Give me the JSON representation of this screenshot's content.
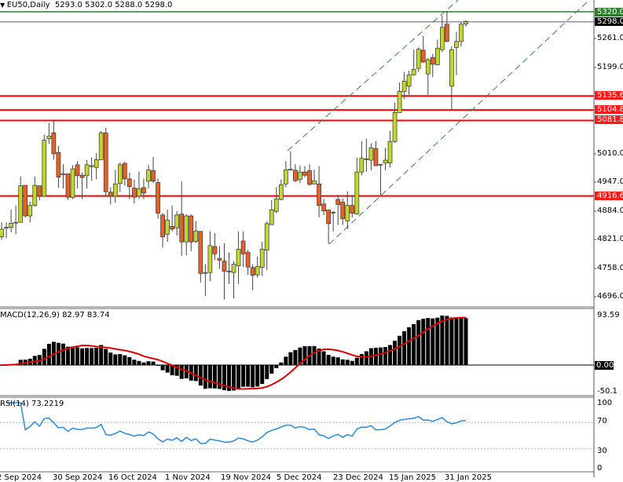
{
  "header": {
    "arrow_icon": "triangle-down-icon",
    "symbol": "EU50,Daily",
    "ohlc": "5293.0 5302.0 5288.0 5298.0"
  },
  "chart_data": [
    {
      "type": "candlestick",
      "title": "EU50,Daily",
      "ylim": [
        4680,
        5330
      ],
      "y_ticks": [
        "5261.0",
        "5199.0",
        "5010.0",
        "4947.0",
        "4884.0",
        "4821.0",
        "4758.0",
        "4696.0"
      ],
      "x_ticks": [
        "2 Sep 2024",
        "30 Sep 2024",
        "16 Oct 2024",
        "1 Nov 2024",
        "19 Nov 2024",
        "5 Dec 2024",
        "23 Dec 2024",
        "15 Jan 2025",
        "31 Jan 2025"
      ],
      "horizontal_levels": [
        {
          "label": "5320.0",
          "value": 5320.0,
          "color": "#2e7d2e"
        },
        {
          "label": "5298.0",
          "value": 5298.0,
          "color": "#8c8cc8",
          "tag_color": "#000000"
        },
        {
          "label": "5135.6",
          "value": 5135.6,
          "color": "#ff0000"
        },
        {
          "label": "5104.8",
          "value": 5104.8,
          "color": "#ff0000"
        },
        {
          "label": "5081.8",
          "value": 5081.8,
          "color": "#ff0000"
        },
        {
          "label": "4916.6",
          "value": 4916.6,
          "color": "#ff0000"
        }
      ],
      "bull_color": "#c2d62e",
      "bear_color": "#e2622a",
      "ohlc": [
        [
          4827,
          4859,
          4821,
          4844
        ],
        [
          4848,
          4859,
          4824,
          4848
        ],
        [
          4848,
          4887,
          4837,
          4857
        ],
        [
          4858,
          4896,
          4833,
          4859
        ],
        [
          4859,
          4959,
          4858,
          4939
        ],
        [
          4940,
          4940,
          4869,
          4873
        ],
        [
          4873,
          4904,
          4859,
          4896
        ],
        [
          4896,
          4959,
          4893,
          4940
        ],
        [
          4939,
          4939,
          4907,
          4916
        ],
        [
          4916,
          5051,
          4916,
          5039
        ],
        [
          5042,
          5076,
          5031,
          5048
        ],
        [
          5055,
          5082,
          4996,
          5009
        ],
        [
          5012,
          5026,
          4935,
          4958
        ],
        [
          4964,
          4986,
          4933,
          4965
        ],
        [
          4965,
          4965,
          4908,
          4914
        ],
        [
          4913,
          4984,
          4910,
          4976
        ],
        [
          4985,
          4993,
          4933,
          4961
        ],
        [
          4962,
          4968,
          4910,
          4957
        ],
        [
          4961,
          4995,
          4933,
          4985
        ],
        [
          4981,
          5001,
          4950,
          4983
        ],
        [
          4979,
          5010,
          4953,
          4996
        ],
        [
          4996,
          5059,
          4996,
          5055
        ],
        [
          5055,
          5066,
          4916,
          4926
        ],
        [
          4925,
          4936,
          4898,
          4916
        ],
        [
          4916,
          4974,
          4902,
          4943
        ],
        [
          4944,
          4990,
          4925,
          4985
        ],
        [
          4988,
          4992,
          4939,
          4954
        ],
        [
          4954,
          4968,
          4910,
          4937
        ],
        [
          4934,
          4952,
          4900,
          4914
        ],
        [
          4916,
          4970,
          4910,
          4933
        ],
        [
          4935,
          4955,
          4910,
          4923
        ],
        [
          4949,
          4985,
          4933,
          4974
        ],
        [
          4972,
          5002,
          4945,
          4949
        ],
        [
          4946,
          4955,
          4867,
          4879
        ],
        [
          4875,
          4879,
          4804,
          4827
        ],
        [
          4833,
          4887,
          4816,
          4864
        ],
        [
          4850,
          4896,
          4839,
          4844
        ],
        [
          4847,
          4884,
          4830,
          4875
        ],
        [
          4877,
          4949,
          4786,
          4816
        ],
        [
          4816,
          4877,
          4787,
          4873
        ],
        [
          4873,
          4876,
          4796,
          4816
        ],
        [
          4817,
          4862,
          4813,
          4840
        ],
        [
          4839,
          4839,
          4727,
          4747
        ],
        [
          4749,
          4767,
          4698,
          4749
        ],
        [
          4749,
          4839,
          4730,
          4808
        ],
        [
          4806,
          4835,
          4777,
          4790
        ],
        [
          4780,
          4807,
          4757,
          4776
        ],
        [
          4774,
          4813,
          4690,
          4752
        ],
        [
          4752,
          4793,
          4724,
          4752
        ],
        [
          4749,
          4774,
          4692,
          4767
        ],
        [
          4764,
          4839,
          4724,
          4800
        ],
        [
          4818,
          4839,
          4761,
          4790
        ],
        [
          4793,
          4799,
          4744,
          4761
        ],
        [
          4760,
          4767,
          4710,
          4743
        ],
        [
          4744,
          4784,
          4738,
          4762
        ],
        [
          4760,
          4816,
          4741,
          4800
        ],
        [
          4798,
          4861,
          4754,
          4856
        ],
        [
          4854,
          4907,
          4853,
          4886
        ],
        [
          4883,
          4936,
          4879,
          4910
        ],
        [
          4909,
          4953,
          4907,
          4941
        ],
        [
          4943,
          4993,
          4936,
          4974
        ],
        [
          4974,
          5015,
          4972,
          4975
        ],
        [
          4973,
          4986,
          4947,
          4950
        ],
        [
          4953,
          4983,
          4945,
          4969
        ],
        [
          4969,
          4982,
          4958,
          4962
        ],
        [
          4972,
          4986,
          4939,
          4942
        ],
        [
          4943,
          4974,
          4942,
          4950
        ],
        [
          4943,
          4982,
          4870,
          4896
        ],
        [
          4899,
          4910,
          4875,
          4884
        ],
        [
          4886,
          4886,
          4812,
          4856
        ],
        [
          4880,
          4884,
          4839,
          4881
        ],
        [
          4909,
          4919,
          4853,
          4898
        ],
        [
          4903,
          4911,
          4853,
          4867
        ],
        [
          4862,
          4927,
          4844,
          4896
        ],
        [
          4896,
          4919,
          4869,
          4879
        ],
        [
          4877,
          5001,
          4876,
          4969
        ],
        [
          4969,
          5037,
          4962,
          4999
        ],
        [
          4997,
          5042,
          4970,
          4998
        ],
        [
          4995,
          5032,
          4973,
          5022
        ],
        [
          5020,
          5037,
          4982,
          4983
        ],
        [
          4985,
          4986,
          4919,
          4986
        ],
        [
          4989,
          5022,
          4973,
          4995
        ],
        [
          4989,
          5059,
          4979,
          5036
        ],
        [
          5036,
          5121,
          5033,
          5099
        ],
        [
          5099,
          5165,
          5099,
          5146
        ],
        [
          5145,
          5188,
          5129,
          5168
        ],
        [
          5157,
          5191,
          5138,
          5182
        ],
        [
          5182,
          5237,
          5180,
          5194
        ],
        [
          5196,
          5242,
          5188,
          5238
        ],
        [
          5236,
          5267,
          5208,
          5210
        ],
        [
          5184,
          5219,
          5138,
          5215
        ],
        [
          5220,
          5228,
          5177,
          5205
        ],
        [
          5204,
          5259,
          5203,
          5240
        ],
        [
          5237,
          5311,
          5232,
          5286
        ],
        [
          5293,
          5322,
          5254,
          5255
        ],
        [
          5157,
          5244,
          5106,
          5237
        ],
        [
          5242,
          5276,
          5181,
          5255
        ],
        [
          5255,
          5297,
          5244,
          5293
        ],
        [
          5293,
          5302,
          5288,
          5298
        ]
      ]
    },
    {
      "type": "bar",
      "indicator": "MACD",
      "label": "MACD(12,26,9) 82.97 83.74",
      "y_ticks": [
        "93.59",
        "0.00",
        "-50.1"
      ],
      "bar_color": "#000000",
      "signal_color": "#e00000"
    },
    {
      "type": "line",
      "indicator": "RSI",
      "label": "RSI(14) 73.2219",
      "y_ticks": [
        "100",
        "70",
        "30",
        "0"
      ],
      "levels": [
        70,
        30
      ],
      "line_color": "#2a8ae0"
    }
  ]
}
